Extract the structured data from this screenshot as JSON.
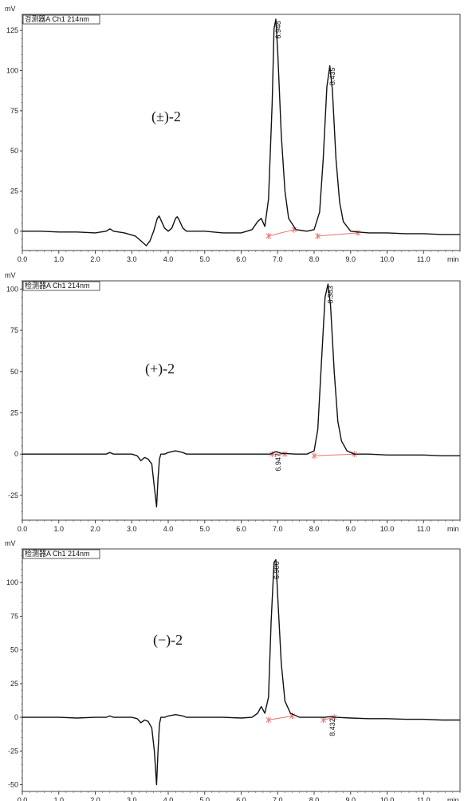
{
  "colors": {
    "trace": "#111111",
    "baseline": "#e87070",
    "axis": "#444444"
  },
  "chart_data": [
    {
      "type": "line",
      "detector_label": "검测器A Ch1 214nm",
      "compound_label": "(±)-2",
      "y_unit": "mV",
      "x_unit": "min",
      "xlim": [
        0,
        12
      ],
      "ylim": [
        -12,
        135
      ],
      "x_ticks": [
        "0.0",
        "1.0",
        "2.0",
        "3.0",
        "4.0",
        "5.0",
        "6.0",
        "7.0",
        "8.0",
        "9.0",
        "10.0",
        "11.0"
      ],
      "y_ticks": [
        "0",
        "25",
        "50",
        "75",
        "100",
        "125"
      ],
      "peaks": [
        {
          "label": "6.948",
          "rt": 6.948,
          "height": 132
        },
        {
          "label": "8.435",
          "rt": 8.435,
          "height": 103
        }
      ],
      "series": [
        {
          "x": [
            0,
            0.5,
            1,
            1.5,
            2,
            2.3,
            2.4,
            2.5,
            2.8,
            3.1,
            3.3,
            3.4,
            3.5,
            3.6,
            3.7,
            3.75,
            3.8,
            3.9,
            4.0,
            4.1,
            4.2,
            4.25,
            4.3,
            4.4,
            4.5,
            5.0,
            5.5,
            6.0,
            6.3,
            6.45,
            6.55,
            6.65,
            6.75,
            6.85,
            6.9,
            6.95,
            7.0,
            7.1,
            7.2,
            7.3,
            7.5,
            7.8,
            8.0,
            8.15,
            8.25,
            8.35,
            8.43,
            8.5,
            8.6,
            8.7,
            8.8,
            9.0,
            9.2,
            9.5,
            10,
            10.5,
            11,
            11.5,
            12
          ],
          "y": [
            0,
            0,
            -0.5,
            -0.5,
            -1,
            0,
            1.5,
            0,
            -1,
            -3,
            -7,
            -9,
            -6,
            0,
            8,
            9.5,
            7,
            2,
            0,
            2,
            8,
            9,
            7,
            2,
            0,
            0,
            -1,
            -1,
            1,
            6,
            8,
            3,
            20,
            80,
            126,
            132,
            112,
            60,
            25,
            8,
            1,
            0,
            1,
            12,
            45,
            90,
            103,
            88,
            45,
            18,
            6,
            0,
            -0.5,
            -1,
            -1,
            -1.5,
            -1.5,
            -2,
            -2
          ]
        }
      ],
      "baselines": [
        {
          "x": [
            6.75,
            7.45
          ],
          "y": [
            -3,
            1
          ]
        },
        {
          "x": [
            8.1,
            9.2
          ],
          "y": [
            -3,
            -1
          ]
        }
      ]
    },
    {
      "type": "line",
      "detector_label": "检测器A Ch1 214nm",
      "compound_label": "(+)-2",
      "y_unit": "mV",
      "x_unit": "min",
      "xlim": [
        0,
        12
      ],
      "ylim": [
        -40,
        105
      ],
      "x_ticks": [
        "0.0",
        "1.0",
        "2.0",
        "3.0",
        "4.0",
        "5.0",
        "6.0",
        "7.0",
        "8.0",
        "9.0",
        "10.0",
        "11.0"
      ],
      "y_ticks": [
        "-25",
        "0",
        "25",
        "50",
        "75",
        "100"
      ],
      "peaks": [
        {
          "label": "6.947",
          "rt": 6.947,
          "height": 1.5
        },
        {
          "label": "8.383",
          "rt": 8.383,
          "height": 103
        }
      ],
      "series": [
        {
          "x": [
            0,
            0.5,
            1,
            1.5,
            2,
            2.3,
            2.4,
            2.5,
            3.0,
            3.15,
            3.25,
            3.35,
            3.45,
            3.55,
            3.62,
            3.68,
            3.72,
            3.76,
            3.8,
            3.9,
            4.0,
            4.2,
            4.4,
            4.5,
            5.0,
            5.5,
            6.0,
            6.5,
            6.8,
            6.95,
            7.1,
            7.5,
            7.8,
            8.0,
            8.1,
            8.2,
            8.3,
            8.38,
            8.45,
            8.55,
            8.65,
            8.75,
            8.9,
            9.1,
            9.5,
            10,
            10.5,
            11,
            11.5,
            12
          ],
          "y": [
            0,
            0,
            0,
            0,
            0,
            0,
            1,
            0,
            0,
            -1,
            -4,
            -2,
            -3,
            -6,
            -20,
            -32,
            -15,
            -3,
            0,
            0,
            1,
            2,
            1,
            0,
            0,
            0,
            0,
            0,
            0,
            1.5,
            0.5,
            0,
            0,
            2,
            15,
            55,
            95,
            103,
            90,
            50,
            20,
            8,
            2,
            0,
            0,
            -0.5,
            -0.5,
            -0.5,
            -1,
            -1
          ]
        }
      ],
      "baselines": [
        {
          "x": [
            6.85,
            7.2
          ],
          "y": [
            0,
            0
          ]
        },
        {
          "x": [
            8.0,
            9.1
          ],
          "y": [
            -1,
            0
          ]
        }
      ]
    },
    {
      "type": "line",
      "detector_label": "检测器A Ch1 214nm",
      "compound_label": "(−)-2",
      "y_unit": "mV",
      "x_unit": "min",
      "xlim": [
        0,
        12
      ],
      "ylim": [
        -55,
        125
      ],
      "x_ticks": [
        "0.0",
        "1.0",
        "2.0",
        "3.0",
        "4.0",
        "5.0",
        "6.0",
        "7.0",
        "8.0",
        "9.0",
        "10.0",
        "11.0"
      ],
      "y_ticks": [
        "-50",
        "-25",
        "0",
        "25",
        "50",
        "75",
        "100"
      ],
      "peaks": [
        {
          "label": "6.906",
          "rt": 6.906,
          "height": 117
        },
        {
          "label": "8.432",
          "rt": 8.432,
          "height": 0.5
        }
      ],
      "series": [
        {
          "x": [
            0,
            0.5,
            1,
            1.5,
            2,
            2.3,
            2.4,
            2.5,
            3.0,
            3.15,
            3.25,
            3.35,
            3.45,
            3.55,
            3.62,
            3.68,
            3.72,
            3.76,
            3.8,
            3.9,
            4.0,
            4.2,
            4.4,
            4.5,
            5.0,
            5.5,
            6.0,
            6.3,
            6.45,
            6.55,
            6.65,
            6.75,
            6.82,
            6.9,
            6.95,
            7.0,
            7.1,
            7.2,
            7.35,
            7.6,
            8.0,
            8.3,
            8.43,
            8.6,
            9.0,
            9.5,
            10,
            10.5,
            11,
            11.5,
            12
          ],
          "y": [
            0,
            0,
            0,
            -0.5,
            0,
            0,
            1,
            0,
            0,
            -1,
            -4,
            -2,
            -3,
            -8,
            -25,
            -50,
            -25,
            -5,
            0,
            0,
            1,
            2,
            1,
            0,
            0,
            0,
            -0.5,
            0,
            3,
            8,
            3,
            15,
            70,
            115,
            117,
            90,
            40,
            12,
            3,
            0,
            0,
            0,
            0.5,
            0,
            -0.5,
            -1,
            -1,
            -1.5,
            -1.5,
            -2,
            -2
          ]
        }
      ],
      "baselines": [
        {
          "x": [
            6.75,
            7.4
          ],
          "y": [
            -2,
            1
          ]
        },
        {
          "x": [
            8.25,
            8.55
          ],
          "y": [
            -2,
            0
          ]
        }
      ]
    }
  ]
}
